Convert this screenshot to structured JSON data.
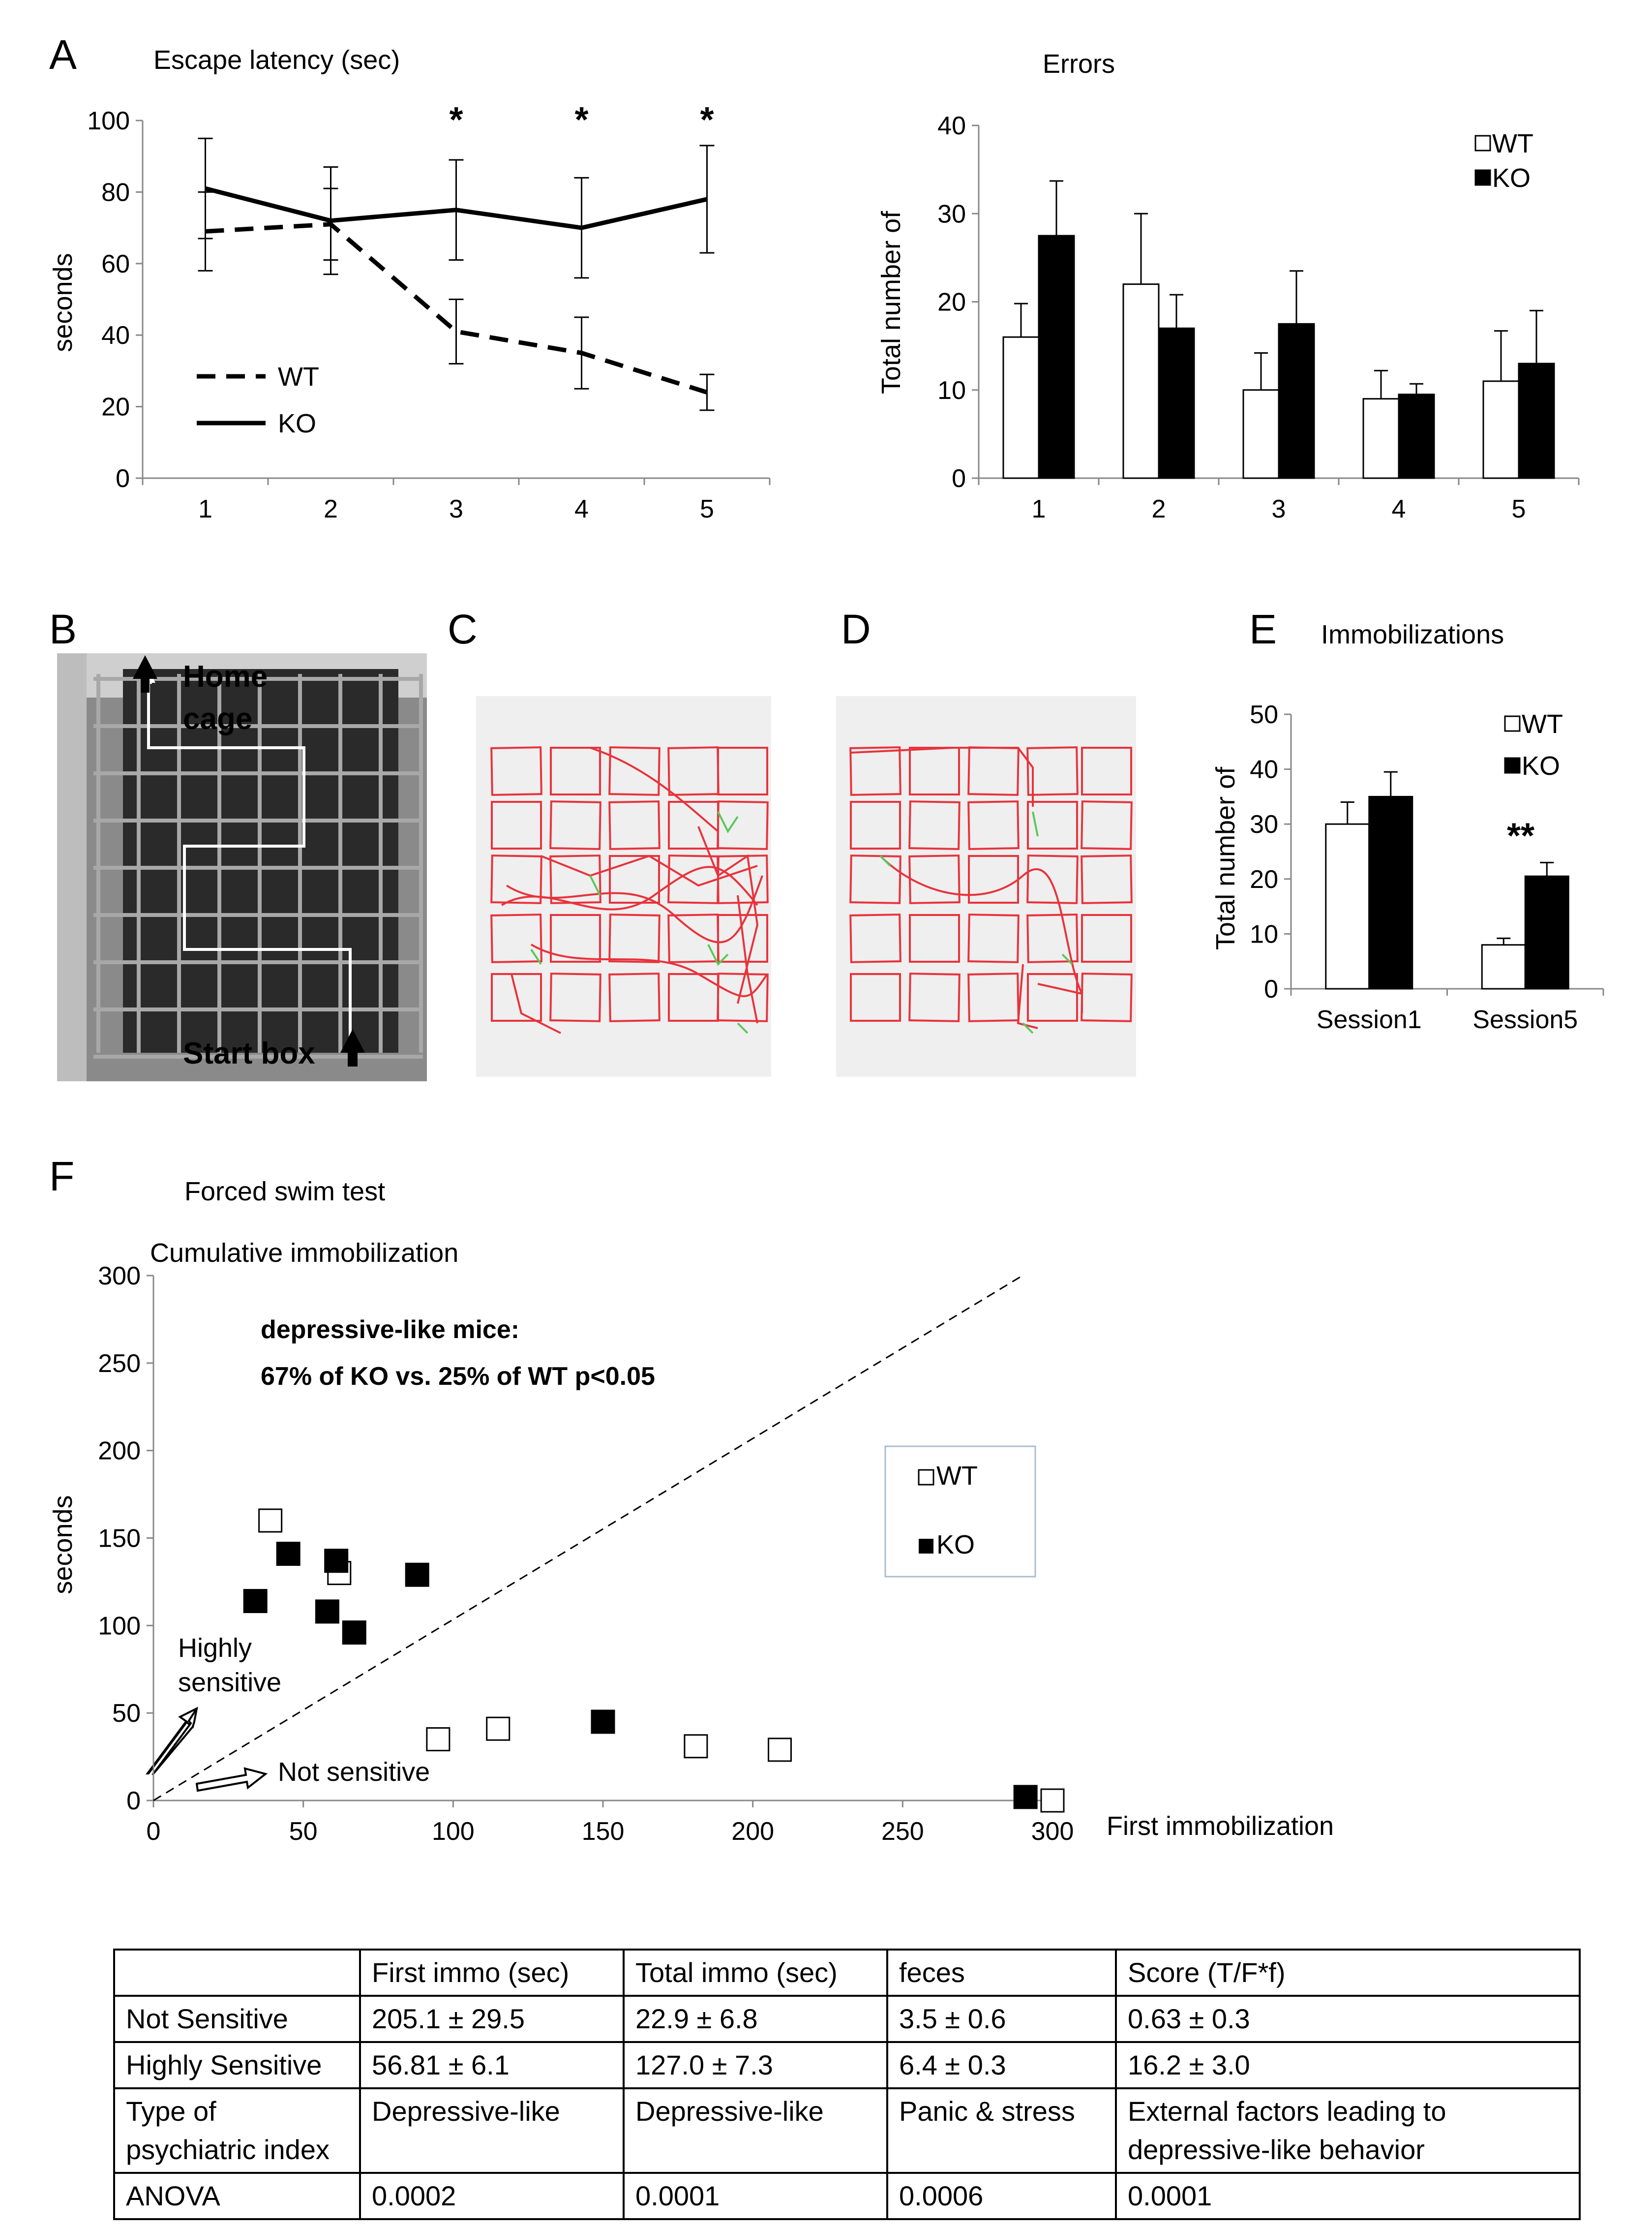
{
  "panels": {
    "A": {
      "letter": "A",
      "latency": {
        "title": "Escape latency (sec)",
        "ylabel": "seconds",
        "yticks": [
          "0",
          "20",
          "40",
          "60",
          "80",
          "100"
        ],
        "xticks": [
          "1",
          "2",
          "3",
          "4",
          "5"
        ],
        "star": "*"
      },
      "errors": {
        "title": "Errors",
        "ylabel": "Total number of",
        "yticks": [
          "0",
          "10",
          "20",
          "30",
          "40"
        ],
        "xticks": [
          "1",
          "2",
          "3",
          "4",
          "5"
        ]
      }
    },
    "B": {
      "letter": "B",
      "home_line1": "Home",
      "home_line2": "cage",
      "start": "Start box"
    },
    "C": {
      "letter": "C"
    },
    "D": {
      "letter": "D"
    },
    "E": {
      "letter": "E",
      "title": "Immobilizations",
      "ylabel": "Total number of",
      "yticks": [
        "0",
        "10",
        "20",
        "30",
        "40",
        "50"
      ],
      "stars": "**"
    },
    "F": {
      "letter": "F",
      "title": "Forced swim test",
      "subtitle": "Cumulative immobilization",
      "ylabel": "seconds",
      "xlabel": "First immobilization",
      "xticks": [
        "0",
        "50",
        "100",
        "150",
        "200",
        "250",
        "300"
      ],
      "yticks": [
        "0",
        "50",
        "100",
        "150",
        "200",
        "250",
        "300"
      ],
      "annotation_line1": "depressive-like mice:",
      "annotation_line2": "67% of KO vs. 25% of WT p<0.05",
      "highly_line1": "Highly",
      "highly_line2": "sensitive",
      "not_sensitive": "Not sensitive"
    }
  },
  "legend": {
    "wt": "WT",
    "ko": "KO"
  },
  "chart_data": [
    {
      "type": "line",
      "title": "Escape latency (sec)",
      "ylabel": "seconds",
      "x": [
        1,
        2,
        3,
        4,
        5
      ],
      "ylim": [
        0,
        100
      ],
      "series": [
        {
          "name": "WT",
          "style": "dashed",
          "values": [
            69,
            71,
            41,
            35,
            24
          ],
          "errors": [
            11,
            10,
            9,
            10,
            5
          ]
        },
        {
          "name": "KO",
          "style": "solid",
          "values": [
            81,
            72,
            75,
            70,
            78
          ],
          "errors": [
            14,
            15,
            14,
            14,
            15
          ]
        }
      ],
      "significance": [
        3,
        4,
        5
      ]
    },
    {
      "type": "bar",
      "title": "Errors",
      "ylabel": "Total number of",
      "categories": [
        "1",
        "2",
        "3",
        "4",
        "5"
      ],
      "ylim": [
        0,
        40
      ],
      "series": [
        {
          "name": "WT",
          "color": "#ffffff",
          "values": [
            16,
            22,
            10,
            9,
            11
          ],
          "errors": [
            3.8,
            8,
            4.2,
            3.2,
            5.7
          ]
        },
        {
          "name": "KO",
          "color": "#000000",
          "values": [
            27.5,
            17,
            17.5,
            9.5,
            13
          ],
          "errors": [
            6.2,
            3.8,
            6,
            1.2,
            6
          ]
        }
      ],
      "legend": "top-right"
    },
    {
      "type": "bar",
      "title": "Immobilizations",
      "ylabel": "Total number of",
      "categories": [
        "Session1",
        "Session5"
      ],
      "ylim": [
        0,
        50
      ],
      "series": [
        {
          "name": "WT",
          "color": "#ffffff",
          "values": [
            30,
            8
          ],
          "errors": [
            4,
            1.2
          ]
        },
        {
          "name": "KO",
          "color": "#000000",
          "values": [
            35,
            20.5
          ],
          "errors": [
            4.5,
            2.5
          ]
        }
      ],
      "significance": [
        "Session5"
      ],
      "legend": "top-right"
    },
    {
      "type": "scatter",
      "title": "Forced swim test",
      "xlabel": "First immobilization",
      "ylabel": "seconds",
      "xlim": [
        0,
        300
      ],
      "ylim": [
        0,
        300
      ],
      "series": [
        {
          "name": "WT",
          "marker": "open-square",
          "points": [
            [
              39,
              160
            ],
            [
              62,
              130
            ],
            [
              95,
              35
            ],
            [
              115,
              41
            ],
            [
              181,
              31
            ],
            [
              209,
              29
            ],
            [
              300,
              0
            ]
          ]
        },
        {
          "name": "KO",
          "marker": "filled-square",
          "points": [
            [
              45,
              141
            ],
            [
              61,
              137
            ],
            [
              34,
              114
            ],
            [
              58,
              108
            ],
            [
              67,
              96
            ],
            [
              88,
              129
            ],
            [
              150,
              45
            ],
            [
              291,
              2
            ]
          ]
        }
      ],
      "reference_line": [
        [
          0,
          0
        ],
        [
          290,
          300
        ]
      ],
      "legend": "right"
    }
  ],
  "table": {
    "header": [
      "",
      "First immo (sec)",
      "Total immo (sec)",
      "feces",
      "Score (T/F*f)"
    ],
    "rows": [
      [
        "Not Sensitive",
        "205.1 ± 29.5",
        "22.9 ± 6.8",
        "3.5 ± 0.6",
        "0.63 ± 0.3"
      ],
      [
        "Highly Sensitive",
        "56.81 ± 6.1",
        "127.0 ± 7.3",
        "6.4 ± 0.3",
        "16.2 ± 3.0"
      ],
      [
        "Type of psychiatric index",
        "Depressive-like",
        "Depressive-like",
        "Panic & stress",
        "External factors leading to depressive-like behavior"
      ],
      [
        "ANOVA",
        "0.0002",
        "0.0001",
        "0.0006",
        "0.0001"
      ]
    ]
  }
}
